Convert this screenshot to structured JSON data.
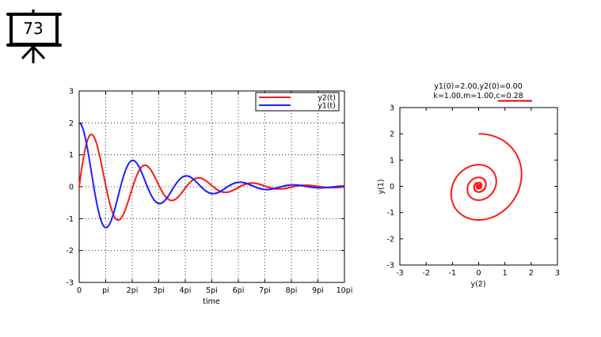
{
  "slide_number": "73",
  "colors": {
    "y1": "#1f1fff",
    "y2": "#ff1a1a",
    "underline": "#e00000"
  },
  "chart_data": [
    {
      "type": "line",
      "xlabel": "time",
      "ylabel": "",
      "xlim": [
        0,
        31.4159
      ],
      "ylim": [
        -3,
        3
      ],
      "grid": true,
      "xticks": [
        "0",
        "pi",
        "2pi",
        "3pi",
        "4pi",
        "5pi",
        "6pi",
        "7pi",
        "8pi",
        "9pi",
        "10pi"
      ],
      "yticks": [
        "-3",
        "-2",
        "-1",
        "0",
        "1",
        "2",
        "3"
      ],
      "legend_position": "top-right",
      "series": [
        {
          "name": "y2(t)",
          "color_key": "y2"
        },
        {
          "name": "y1(t)",
          "color_key": "y1"
        }
      ],
      "model": {
        "y1_0": 2.0,
        "y2_0": 0.0,
        "k": 1.0,
        "m": 1.0,
        "c": 0.28
      }
    },
    {
      "type": "line",
      "title_line1": "y1(0)=2.00,y2(0)=0.00",
      "title_line2": "k=1.00,m=1.00,c=0.28",
      "xlabel": "y(2)",
      "ylabel": "y(1)",
      "xlim": [
        -3,
        3
      ],
      "ylim": [
        -3,
        3
      ],
      "xticks": [
        "-3",
        "-2",
        "-1",
        "0",
        "1",
        "2",
        "3"
      ],
      "yticks": [
        "-3",
        "-2",
        "-1",
        "0",
        "1",
        "2",
        "3"
      ],
      "grid": false
    }
  ]
}
